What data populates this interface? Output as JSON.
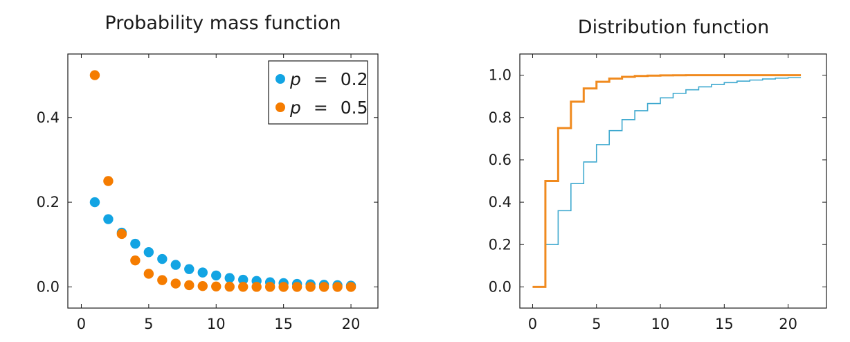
{
  "chart_data": [
    {
      "type": "scatter",
      "title": "Probability mass function",
      "xlabel": "",
      "ylabel": "",
      "xlim": [
        -1,
        22
      ],
      "ylim": [
        -0.05,
        0.55
      ],
      "xticks": [
        "0",
        "5",
        "10",
        "15",
        "20"
      ],
      "xtick_values": [
        0,
        5,
        10,
        15,
        20
      ],
      "yticks": [
        "0.0",
        "0.2",
        "0.4"
      ],
      "ytick_values": [
        0,
        0.2,
        0.4
      ],
      "grid": false,
      "legend_position": "top-right",
      "legend": {
        "var": "p",
        "eq": "=",
        "entries": [
          "0.2",
          "0.5"
        ]
      },
      "series": [
        {
          "name": "p = 0.2",
          "color": "#12a4e3",
          "x": [
            1,
            2,
            3,
            4,
            5,
            6,
            7,
            8,
            9,
            10,
            11,
            12,
            13,
            14,
            15,
            16,
            17,
            18,
            19,
            20
          ],
          "y": [
            0.2,
            0.16,
            0.128,
            0.102,
            0.082,
            0.066,
            0.052,
            0.042,
            0.034,
            0.027,
            0.021,
            0.017,
            0.014,
            0.011,
            0.009,
            0.007,
            0.006,
            0.005,
            0.004,
            0.003
          ]
        },
        {
          "name": "p = 0.5",
          "color": "#f57c00",
          "x": [
            1,
            2,
            3,
            4,
            5,
            6,
            7,
            8,
            9,
            10,
            11,
            12,
            13,
            14,
            15,
            16,
            17,
            18,
            19,
            20
          ],
          "y": [
            0.5,
            0.25,
            0.125,
            0.0625,
            0.031,
            0.016,
            0.008,
            0.004,
            0.002,
            0.001,
            0.0005,
            0.0002,
            0.0001,
            0.0001,
            0,
            0,
            0,
            0,
            0,
            0
          ]
        }
      ]
    },
    {
      "type": "line",
      "step": true,
      "title": "Distribution function",
      "xlabel": "",
      "ylabel": "",
      "xlim": [
        -1,
        23
      ],
      "ylim": [
        -0.1,
        1.1
      ],
      "xticks": [
        "0",
        "5",
        "10",
        "15",
        "20"
      ],
      "xtick_values": [
        0,
        5,
        10,
        15,
        20
      ],
      "yticks": [
        "0.0",
        "0.2",
        "0.4",
        "0.6",
        "0.8",
        "1.0"
      ],
      "ytick_values": [
        0,
        0.2,
        0.4,
        0.6,
        0.8,
        1.0
      ],
      "grid": false,
      "series": [
        {
          "name": "p = 0.2",
          "color": "#3fa9cf",
          "x": [
            0,
            1,
            2,
            3,
            4,
            5,
            6,
            7,
            8,
            9,
            10,
            11,
            12,
            13,
            14,
            15,
            16,
            17,
            18,
            19,
            20,
            21
          ],
          "y": [
            0,
            0.2,
            0.36,
            0.488,
            0.59,
            0.672,
            0.738,
            0.79,
            0.832,
            0.866,
            0.893,
            0.914,
            0.931,
            0.945,
            0.956,
            0.965,
            0.972,
            0.977,
            0.982,
            0.986,
            0.988,
            0.988
          ]
        },
        {
          "name": "p = 0.5",
          "color": "#f08a1e",
          "x": [
            0,
            1,
            2,
            3,
            4,
            5,
            6,
            7,
            8,
            9,
            10,
            11,
            12,
            13,
            14,
            15,
            16,
            17,
            18,
            19,
            20,
            21
          ],
          "y": [
            0,
            0.5,
            0.75,
            0.875,
            0.9375,
            0.969,
            0.984,
            0.992,
            0.996,
            0.998,
            0.999,
            0.9995,
            0.9998,
            0.9999,
            1,
            1,
            1,
            1,
            1,
            1,
            1,
            1
          ]
        }
      ]
    }
  ]
}
